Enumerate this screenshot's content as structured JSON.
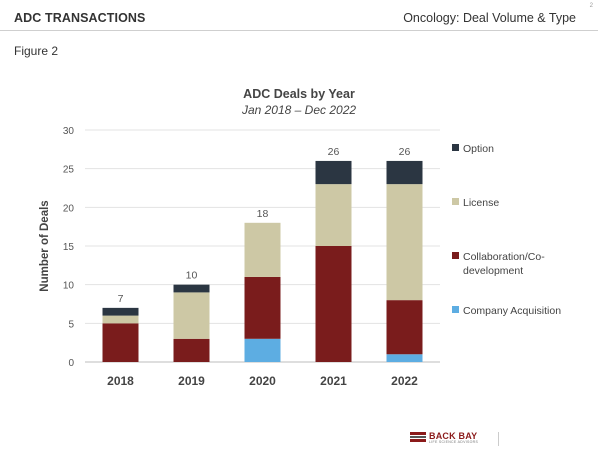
{
  "page_number": "2",
  "header": {
    "left_title": "ADC TRANSACTIONS",
    "right_title": "Oncology: Deal Volume & Type"
  },
  "figure_label": "Figure 2",
  "logo": {
    "text": "BACK BAY",
    "subtext": "LIFE SCIENCE ADVISORS"
  },
  "colors": {
    "Option": "#2b3642",
    "License": "#cdc8a5",
    "Collaboration/Co-development": "#7a1c1c",
    "Company Acquisition": "#5dade2"
  },
  "chart_data": {
    "type": "bar",
    "stacked": true,
    "title": "ADC Deals by Year",
    "subtitle": "Jan 2018 – Dec 2022",
    "xlabel": "",
    "ylabel": "Number of Deals",
    "ylim": [
      0,
      30
    ],
    "yticks": [
      0,
      5,
      10,
      15,
      20,
      25,
      30
    ],
    "grid": true,
    "legend_position": "right",
    "categories": [
      "2018",
      "2019",
      "2020",
      "2021",
      "2022"
    ],
    "totals": [
      7,
      10,
      18,
      26,
      26
    ],
    "series": [
      {
        "name": "Company Acquisition",
        "values": [
          0,
          0,
          3,
          0,
          1
        ]
      },
      {
        "name": "Collaboration/Co-development",
        "legend_lines": [
          "Collaboration/Co-",
          "development"
        ],
        "values": [
          5,
          3,
          8,
          15,
          7
        ]
      },
      {
        "name": "License",
        "values": [
          1,
          6,
          7,
          8,
          15
        ]
      },
      {
        "name": "Option",
        "values": [
          1,
          1,
          0,
          3,
          3
        ]
      }
    ],
    "legend_order": [
      "Option",
      "License",
      "Collaboration/Co-development",
      "Company Acquisition"
    ]
  }
}
